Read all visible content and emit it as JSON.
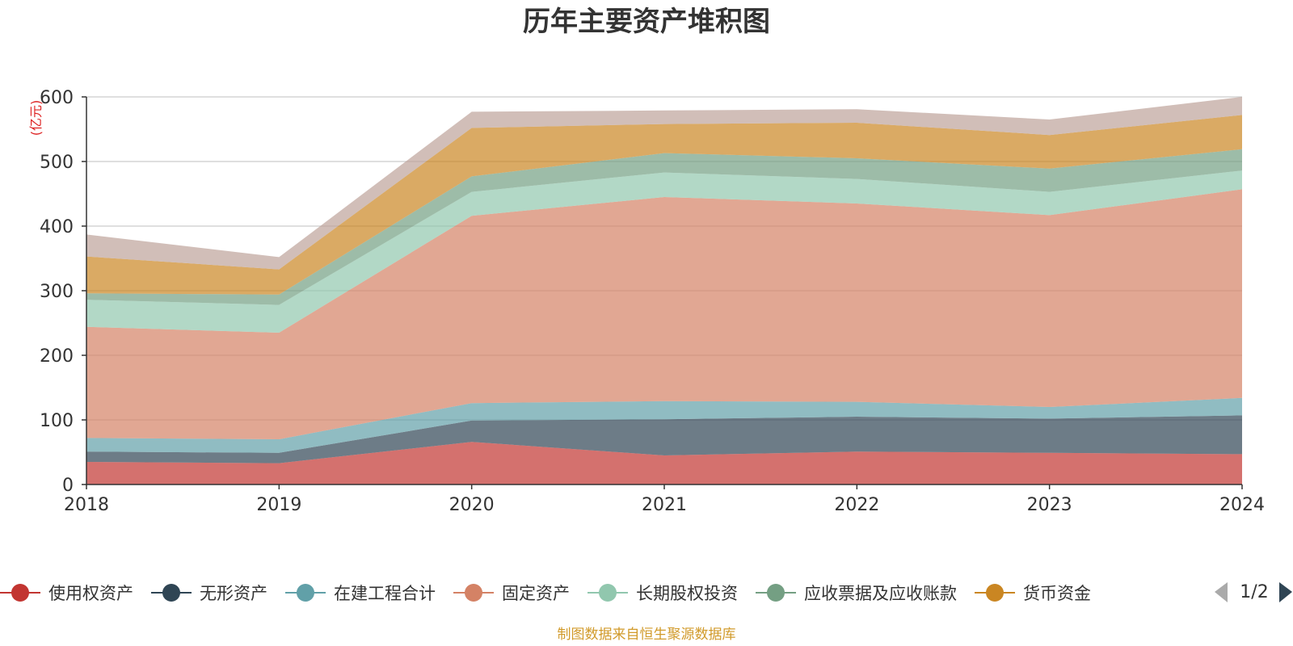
{
  "chart_data": {
    "type": "area",
    "title": "历年主要资产堆积图",
    "unit_label": "(亿元)",
    "xlabel": "",
    "ylabel": "",
    "x": [
      "2018",
      "2019",
      "2020",
      "2021",
      "2022",
      "2023",
      "2024"
    ],
    "ylim": [
      0,
      600
    ],
    "yticks": [
      0,
      100,
      200,
      300,
      400,
      500,
      600
    ],
    "stacked": true,
    "grid": true,
    "legend_position": "bottom",
    "series": [
      {
        "name": "使用权资产",
        "color": "#c23531",
        "values": [
          35,
          33,
          66,
          45,
          51,
          49,
          47
        ]
      },
      {
        "name": "无形资产",
        "color": "#2f4554",
        "values": [
          16,
          16,
          33,
          56,
          54,
          53,
          60
        ]
      },
      {
        "name": "在建工程合计",
        "color": "#61a0a8",
        "values": [
          21,
          21,
          27,
          28,
          23,
          18,
          27
        ]
      },
      {
        "name": "固定资产",
        "color": "#d48265",
        "values": [
          172,
          165,
          290,
          316,
          307,
          297,
          323
        ]
      },
      {
        "name": "长期股权投资",
        "color": "#91c7ae",
        "values": [
          42,
          43,
          37,
          38,
          38,
          36,
          29
        ]
      },
      {
        "name": "应收票据及应收账款",
        "color": "#749f83",
        "values": [
          10,
          16,
          24,
          30,
          32,
          36,
          33
        ]
      },
      {
        "name": "货币资金",
        "color": "#ca8622",
        "values": [
          57,
          39,
          75,
          45,
          55,
          52,
          53
        ]
      },
      {
        "name": "",
        "color": "#bda29a",
        "values": [
          34,
          19,
          25,
          21,
          21,
          24,
          28
        ]
      }
    ],
    "legend_page": "1/2",
    "source_note": "制图数据来自恒生聚源数据库"
  }
}
